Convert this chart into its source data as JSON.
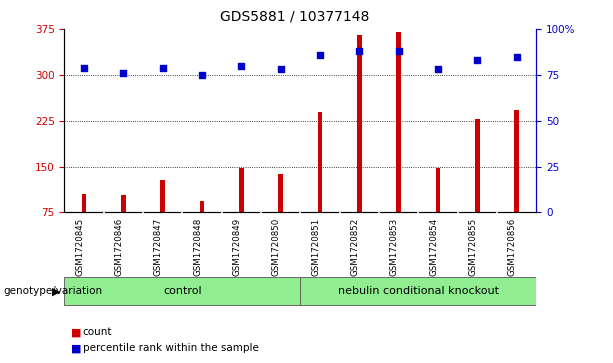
{
  "title": "GDS5881 / 10377148",
  "samples": [
    "GSM1720845",
    "GSM1720846",
    "GSM1720847",
    "GSM1720848",
    "GSM1720849",
    "GSM1720850",
    "GSM1720851",
    "GSM1720852",
    "GSM1720853",
    "GSM1720854",
    "GSM1720855",
    "GSM1720856"
  ],
  "counts": [
    105,
    103,
    128,
    93,
    148,
    138,
    240,
    365,
    370,
    148,
    228,
    242
  ],
  "percentiles": [
    79,
    76,
    79,
    75,
    80,
    78,
    86,
    88,
    88,
    78,
    83,
    85
  ],
  "bar_color": "#CC0000",
  "dot_color": "#0000CC",
  "ylim_left": [
    75,
    375
  ],
  "ylim_right": [
    0,
    100
  ],
  "yticks_left": [
    75,
    150,
    225,
    300,
    375
  ],
  "yticks_right": [
    0,
    25,
    50,
    75,
    100
  ],
  "grid_values": [
    150,
    225,
    300
  ],
  "plot_bg": "#FFFFFF",
  "tick_bg": "#C8C8C8",
  "group_bg": "#90EE90",
  "label_fontsize": 7,
  "title_fontsize": 10,
  "legend_items": [
    "count",
    "percentile rank within the sample"
  ],
  "genotype_label": "genotype/variation",
  "control_label": "control",
  "knockout_label": "nebulin conditional knockout",
  "control_range": [
    0,
    5
  ],
  "knockout_range": [
    6,
    11
  ]
}
